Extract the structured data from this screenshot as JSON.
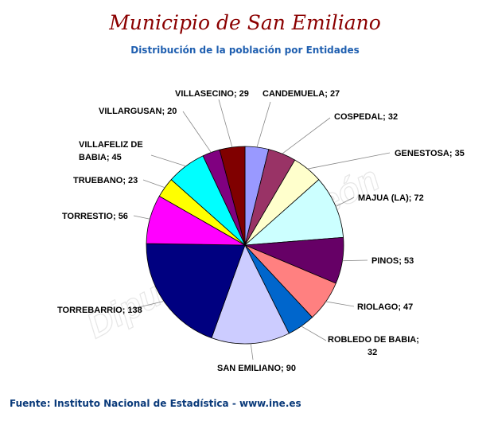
{
  "chart_data": {
    "type": "pie",
    "title": "Municipio de San Emiliano",
    "subtitle": "Distribución de la población por Entidades",
    "source": "Fuente: Instituto Nacional de Estadística - www.ine.es",
    "watermark": "Diputación de León",
    "start": "12 o'clock, clockwise",
    "categories": [
      "CANDEMUELA",
      "COSPEDAL",
      "GENESTOSA",
      "MAJUA (LA)",
      "PINOS",
      "RIOLAGO",
      "ROBLEDO DE BABIA",
      "SAN EMILIANO",
      "TORREBARRIO",
      "TORRESTIO",
      "TRUEBANO",
      "VILLAFELIZ DE BABIA",
      "VILLARGUSAN",
      "VILLASECINO"
    ],
    "values": [
      27,
      32,
      35,
      72,
      53,
      47,
      32,
      90,
      138,
      56,
      23,
      45,
      20,
      29
    ],
    "labels": [
      "CANDEMUELA; 27",
      "COSPEDAL; 32",
      "GENESTOSA; 35",
      "MAJUA (LA); 72",
      "PINOS; 53",
      "RIOLAGO; 47",
      "ROBLEDO DE BABIA; 32",
      "SAN EMILIANO; 90",
      "TORREBARRIO; 138",
      "TORRESTIO; 56",
      "TRUEBANO; 23",
      "VILLAFELIZ DE BABIA; 45",
      "VILLARGUSAN; 20",
      "VILLASECINO; 29"
    ],
    "colors": [
      "#9999ff",
      "#993366",
      "#ffffcc",
      "#ccffff",
      "#660066",
      "#ff8080",
      "#0066cc",
      "#ccccff",
      "#000080",
      "#ff00ff",
      "#ffff00",
      "#00ffff",
      "#800080",
      "#800000"
    ]
  }
}
